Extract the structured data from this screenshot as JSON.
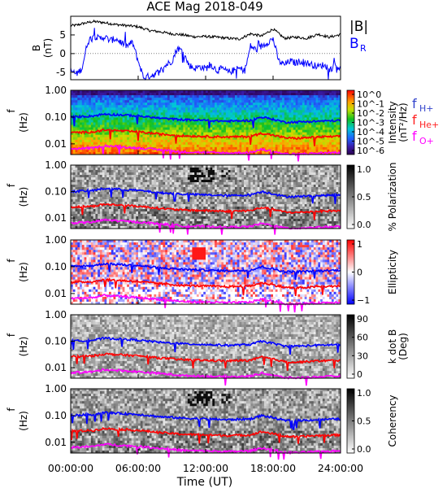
{
  "chart_data": {
    "title": "ACE Mag 2018-049",
    "type": "multi-panel",
    "xlabel": "Time (UT)",
    "x_ticks": [
      "00:00:00",
      "06:00:00",
      "12:00:00",
      "18:00:00",
      "24:00:00"
    ],
    "x_range_hours": [
      0,
      24
    ],
    "panels": [
      {
        "id": "b-field",
        "type": "line",
        "ylabel": "B",
        "yunit": "(nT)",
        "ylim": [
          -7,
          10
        ],
        "y_ticks": [
          -5,
          0,
          5
        ],
        "legend": [
          "|B|",
          "B",
          "R"
        ],
        "series": [
          {
            "name": "|B|",
            "color": "#000000",
            "x": [
              0,
              0.5,
              1,
              2,
              3,
              4,
              5,
              6,
              7,
              8,
              9,
              10,
              11,
              12,
              13,
              14,
              15,
              16,
              17,
              18,
              19,
              20,
              21,
              22,
              23,
              24
            ],
            "values": [
              7.5,
              7.6,
              8.0,
              8.6,
              8.3,
              7.8,
              7.5,
              7.2,
              6.2,
              5.8,
              5.3,
              5.0,
              4.5,
              4.6,
              4.4,
              4.1,
              3.9,
              5.3,
              4.7,
              6.6,
              4.1,
              4.4,
              4.1,
              5.2,
              4.4,
              5.1
            ]
          },
          {
            "name": "BR",
            "color": "#0000ff",
            "x": [
              0,
              0.5,
              1,
              1.5,
              2,
              2.5,
              3,
              3.5,
              4,
              4.5,
              5,
              5.5,
              6,
              6.5,
              7,
              7.5,
              8,
              8.5,
              9,
              9.5,
              10,
              10.5,
              11,
              11.5,
              12,
              12.5,
              13,
              13.5,
              14,
              14.5,
              15,
              15.5,
              16,
              16.5,
              17,
              17.5,
              18,
              18.5,
              19,
              19.5,
              20,
              20.5,
              21,
              21.5,
              22,
              22.5,
              23,
              23.5,
              24
            ],
            "values": [
              -4.5,
              -5.5,
              -4.0,
              3.0,
              5.0,
              4.0,
              4.5,
              3.5,
              4.0,
              3.0,
              2.0,
              3.0,
              -2.0,
              -6.5,
              -6.0,
              -5.5,
              -4.5,
              -3.0,
              -2.0,
              1.5,
              0.5,
              -3.0,
              -4.0,
              -3.5,
              -4.0,
              -3.0,
              -4.5,
              -4.0,
              -5.0,
              -4.5,
              -4.0,
              -4.5,
              2.0,
              1.0,
              2.0,
              3.0,
              4.0,
              -2.0,
              -3.0,
              -2.0,
              -2.5,
              -2.0,
              -2.5,
              -3.0,
              -3.5,
              -3.0,
              -4.5,
              -3.0,
              -4.0
            ]
          }
        ]
      },
      {
        "id": "intensity",
        "type": "heatmap",
        "colorbar": "rainbow",
        "cbar_ticks": [
          "10^0",
          "10^-1",
          "10^-2",
          "10^-3",
          "10^-4",
          "10^-5",
          "10^-6"
        ],
        "cbar_label": "Intensity",
        "cbar_unit": "(nT²/Hz)",
        "legend": [
          "fH+",
          "fHe+",
          "fO+"
        ]
      },
      {
        "id": "polarization",
        "type": "heatmap",
        "colorbar": "gray",
        "cbar_ticks": [
          "1.0",
          "0.5",
          "0.0"
        ],
        "cbar_label": "% Polarization"
      },
      {
        "id": "ellipticity",
        "type": "heatmap",
        "colorbar": "red-white-blue",
        "cbar_ticks": [
          "1",
          "0",
          "−1"
        ],
        "cbar_label": "Ellipticity"
      },
      {
        "id": "kdotb",
        "type": "heatmap",
        "colorbar": "gray",
        "cbar_ticks": [
          "90",
          "60",
          "30",
          "0"
        ],
        "cbar_label": "k dot B",
        "cbar_unit": "(Deg)"
      },
      {
        "id": "coherency",
        "type": "heatmap",
        "colorbar": "gray",
        "cbar_ticks": [
          "1.0",
          "0.5",
          "0.0"
        ],
        "cbar_label": "Coherency"
      }
    ],
    "spectra_ylabel": "f",
    "spectra_yunit": "(Hz)",
    "spectra_y_ticks": [
      "1.00",
      "0.10",
      "0.01"
    ],
    "spectra_ylim": [
      0.004,
      1.0
    ],
    "spectra_yscale": "log",
    "gyrofrequency_lines": [
      {
        "name": "fH+",
        "color": "#0000ff",
        "x": [
          0,
          2,
          3,
          6,
          8,
          10,
          12,
          14,
          16,
          17,
          19,
          20,
          22,
          24
        ],
        "values": [
          0.1,
          0.11,
          0.13,
          0.11,
          0.09,
          0.08,
          0.075,
          0.07,
          0.075,
          0.1,
          0.065,
          0.065,
          0.07,
          0.075
        ]
      },
      {
        "name": "fHe+",
        "color": "#ff0000",
        "x": [
          0,
          2,
          3,
          6,
          8,
          10,
          12,
          14,
          16,
          17,
          19,
          20,
          22,
          24
        ],
        "values": [
          0.026,
          0.028,
          0.033,
          0.028,
          0.023,
          0.02,
          0.019,
          0.018,
          0.019,
          0.025,
          0.017,
          0.016,
          0.018,
          0.019
        ]
      },
      {
        "name": "fO+",
        "color": "#ff00ff",
        "x": [
          0,
          2,
          3,
          6,
          8,
          10,
          12,
          14,
          16,
          17,
          19,
          20,
          22,
          24
        ],
        "values": [
          0.0065,
          0.007,
          0.0085,
          0.007,
          0.006,
          0.005,
          0.0048,
          0.0045,
          0.0048,
          0.0062,
          0.0042,
          0.0041,
          0.0045,
          0.0048
        ]
      }
    ]
  }
}
